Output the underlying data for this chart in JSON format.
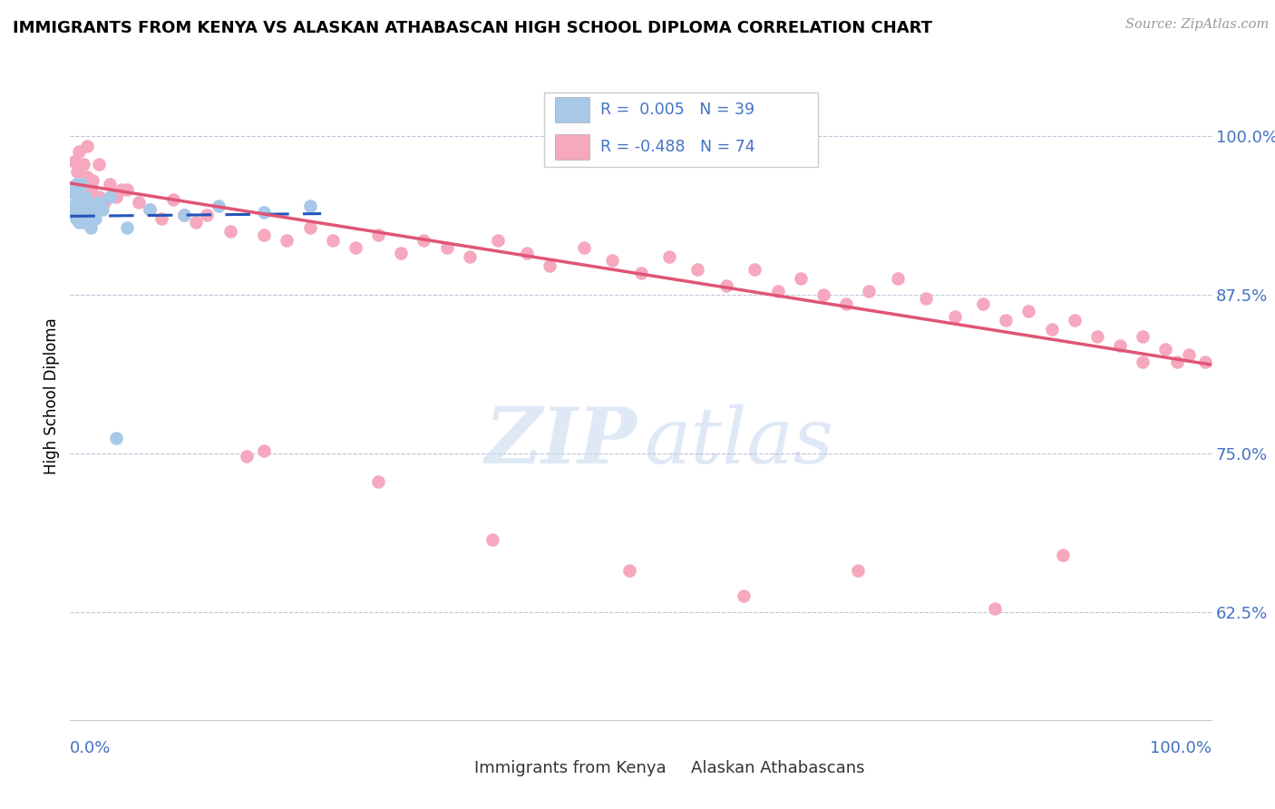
{
  "title": "IMMIGRANTS FROM KENYA VS ALASKAN ATHABASCAN HIGH SCHOOL DIPLOMA CORRELATION CHART",
  "source": "Source: ZipAtlas.com",
  "ylabel": "High School Diploma",
  "ytick_labels": [
    "62.5%",
    "75.0%",
    "87.5%",
    "100.0%"
  ],
  "ytick_values": [
    0.625,
    0.75,
    0.875,
    1.0
  ],
  "xlim": [
    0.0,
    1.0
  ],
  "ylim": [
    0.54,
    1.05
  ],
  "legend_blue_label": "Immigrants from Kenya",
  "legend_pink_label": "Alaskan Athabascans",
  "R_blue": "0.005",
  "N_blue": "39",
  "R_pink": "-0.488",
  "N_pink": "74",
  "blue_color": "#a8c8e8",
  "pink_color": "#f5a8be",
  "blue_line_color": "#2255bb",
  "pink_line_color": "#e05575",
  "axis_label_color": "#4472c4",
  "blue_trend_x": [
    0.0,
    0.22
  ],
  "blue_trend_y": [
    0.937,
    0.939
  ],
  "pink_trend_x": [
    0.0,
    1.0
  ],
  "pink_trend_y": [
    0.963,
    0.82
  ],
  "blue_scatter_x": [
    0.002,
    0.003,
    0.003,
    0.004,
    0.004,
    0.005,
    0.005,
    0.006,
    0.006,
    0.007,
    0.007,
    0.008,
    0.008,
    0.009,
    0.009,
    0.01,
    0.01,
    0.011,
    0.012,
    0.012,
    0.013,
    0.014,
    0.015,
    0.016,
    0.017,
    0.018,
    0.019,
    0.02,
    0.022,
    0.025,
    0.028,
    0.035,
    0.04,
    0.05,
    0.07,
    0.1,
    0.13,
    0.17,
    0.21
  ],
  "blue_scatter_y": [
    0.945,
    0.955,
    0.94,
    0.958,
    0.942,
    0.962,
    0.935,
    0.955,
    0.938,
    0.948,
    0.962,
    0.942,
    0.932,
    0.952,
    0.938,
    0.948,
    0.962,
    0.935,
    0.945,
    0.932,
    0.952,
    0.942,
    0.938,
    0.948,
    0.935,
    0.928,
    0.945,
    0.94,
    0.935,
    0.948,
    0.942,
    0.952,
    0.762,
    0.928,
    0.942,
    0.938,
    0.945,
    0.94,
    0.945
  ],
  "pink_scatter_x": [
    0.004,
    0.006,
    0.008,
    0.01,
    0.012,
    0.015,
    0.018,
    0.02,
    0.025,
    0.03,
    0.035,
    0.04,
    0.05,
    0.06,
    0.07,
    0.08,
    0.09,
    0.1,
    0.11,
    0.12,
    0.14,
    0.155,
    0.17,
    0.19,
    0.21,
    0.23,
    0.25,
    0.27,
    0.29,
    0.31,
    0.33,
    0.35,
    0.375,
    0.4,
    0.42,
    0.45,
    0.475,
    0.5,
    0.525,
    0.55,
    0.575,
    0.6,
    0.62,
    0.64,
    0.66,
    0.68,
    0.7,
    0.725,
    0.75,
    0.775,
    0.8,
    0.82,
    0.84,
    0.86,
    0.88,
    0.9,
    0.92,
    0.94,
    0.96,
    0.98,
    0.995,
    0.015,
    0.025,
    0.045,
    0.17,
    0.27,
    0.37,
    0.49,
    0.59,
    0.69,
    0.81,
    0.87,
    0.94,
    0.97
  ],
  "pink_scatter_y": [
    0.98,
    0.972,
    0.988,
    0.962,
    0.978,
    0.968,
    0.958,
    0.965,
    0.952,
    0.948,
    0.962,
    0.952,
    0.958,
    0.948,
    0.942,
    0.935,
    0.95,
    0.938,
    0.932,
    0.938,
    0.925,
    0.748,
    0.922,
    0.918,
    0.928,
    0.918,
    0.912,
    0.922,
    0.908,
    0.918,
    0.912,
    0.905,
    0.918,
    0.908,
    0.898,
    0.912,
    0.902,
    0.892,
    0.905,
    0.895,
    0.882,
    0.895,
    0.878,
    0.888,
    0.875,
    0.868,
    0.878,
    0.888,
    0.872,
    0.858,
    0.868,
    0.855,
    0.862,
    0.848,
    0.855,
    0.842,
    0.835,
    0.842,
    0.832,
    0.828,
    0.822,
    0.992,
    0.978,
    0.958,
    0.752,
    0.728,
    0.682,
    0.658,
    0.638,
    0.658,
    0.628,
    0.67,
    0.822,
    0.822
  ]
}
